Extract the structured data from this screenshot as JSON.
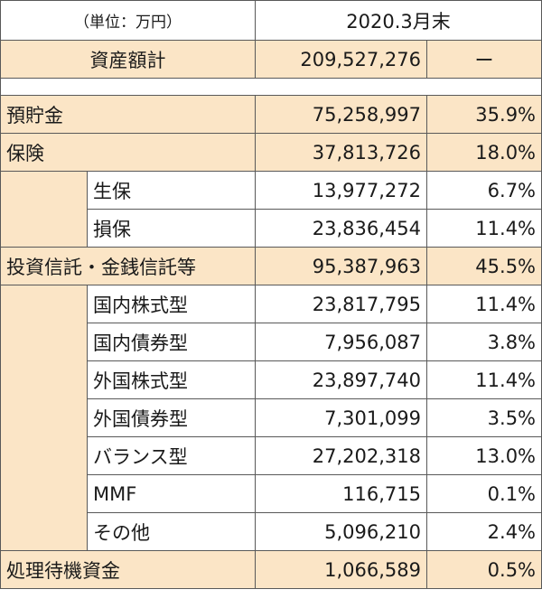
{
  "header": {
    "unit": "（単位：万円）",
    "period": "2020.3月末"
  },
  "total": {
    "label": "資産額計",
    "value": "209,527,276",
    "share": "ー"
  },
  "sections": [
    {
      "label": "預貯金",
      "value": "75,258,997",
      "share": "35.9%",
      "children": []
    },
    {
      "label": "保険",
      "value": "37,813,726",
      "share": "18.0%",
      "children": [
        {
          "label": "生保",
          "value": "13,977,272",
          "share": "6.7%"
        },
        {
          "label": "損保",
          "value": "23,836,454",
          "share": "11.4%"
        }
      ]
    },
    {
      "label": "投資信託・金銭信託等",
      "value": "95,387,963",
      "share": "45.5%",
      "children": [
        {
          "label": "国内株式型",
          "value": "23,817,795",
          "share": "11.4%"
        },
        {
          "label": "国内債券型",
          "value": "7,956,087",
          "share": "3.8%"
        },
        {
          "label": "外国株式型",
          "value": "23,897,740",
          "share": "11.4%"
        },
        {
          "label": "外国債券型",
          "value": "7,301,099",
          "share": "3.5%"
        },
        {
          "label": "バランス型",
          "value": "27,202,318",
          "share": "13.0%"
        },
        {
          "label": "MMF",
          "value": "116,715",
          "share": "0.1%"
        },
        {
          "label": "その他",
          "value": "5,096,210",
          "share": "2.4%"
        }
      ]
    },
    {
      "label": "処理待機資金",
      "value": "1,066,589",
      "share": "0.5%",
      "children": []
    }
  ],
  "colors": {
    "highlight": "#fbe5c6",
    "border": "#595959"
  }
}
